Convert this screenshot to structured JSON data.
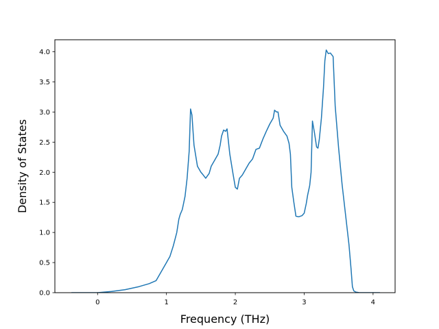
{
  "chart_data": {
    "type": "line",
    "title": "",
    "xlabel": "Frequency (THz)",
    "ylabel": "Density of States",
    "xlim": [
      -0.62,
      4.32
    ],
    "ylim": [
      0.0,
      4.2
    ],
    "xticks": [
      0,
      1,
      2,
      3,
      4
    ],
    "xtick_labels": [
      "0",
      "1",
      "2",
      "3",
      "4"
    ],
    "yticks": [
      0.0,
      0.5,
      1.0,
      1.5,
      2.0,
      2.5,
      3.0,
      3.5,
      4.0
    ],
    "ytick_labels": [
      "0.0",
      "0.5",
      "1.0",
      "1.5",
      "2.0",
      "2.5",
      "3.0",
      "3.5",
      "4.0"
    ],
    "grid": false,
    "colors": {
      "line": "#1f77b4",
      "axes": "#000000"
    },
    "series": [
      {
        "x": [
          -0.38,
          0.0,
          0.2,
          0.4,
          0.6,
          0.75,
          0.85,
          0.9,
          0.95,
          1.0,
          1.05,
          1.1,
          1.15,
          1.18,
          1.2,
          1.23,
          1.27,
          1.3,
          1.33,
          1.35,
          1.37,
          1.4,
          1.45,
          1.5,
          1.53,
          1.57,
          1.62,
          1.65,
          1.7,
          1.75,
          1.78,
          1.8,
          1.83,
          1.86,
          1.88,
          1.92,
          1.97,
          2.0,
          2.03,
          2.06,
          2.1,
          2.15,
          2.2,
          2.25,
          2.3,
          2.35,
          2.4,
          2.45,
          2.5,
          2.55,
          2.57,
          2.6,
          2.62,
          2.65,
          2.7,
          2.75,
          2.78,
          2.8,
          2.82,
          2.85,
          2.88,
          2.92,
          2.97,
          3.0,
          3.03,
          3.05,
          3.08,
          3.1,
          3.12,
          3.15,
          3.18,
          3.2,
          3.22,
          3.25,
          3.28,
          3.3,
          3.32,
          3.35,
          3.38,
          3.42,
          3.45,
          3.5,
          3.55,
          3.6,
          3.65,
          3.68,
          3.7,
          3.72,
          3.75,
          3.8,
          4.0,
          4.1
        ],
        "y": [
          0.0,
          0.0,
          0.02,
          0.05,
          0.1,
          0.15,
          0.2,
          0.3,
          0.4,
          0.5,
          0.6,
          0.78,
          1.0,
          1.22,
          1.3,
          1.38,
          1.6,
          1.9,
          2.35,
          3.05,
          2.95,
          2.45,
          2.1,
          2.0,
          1.96,
          1.9,
          1.98,
          2.1,
          2.2,
          2.3,
          2.45,
          2.6,
          2.7,
          2.68,
          2.72,
          2.3,
          1.95,
          1.75,
          1.72,
          1.9,
          1.95,
          2.05,
          2.15,
          2.22,
          2.38,
          2.4,
          2.55,
          2.68,
          2.8,
          2.9,
          3.03,
          3.0,
          3.0,
          2.78,
          2.68,
          2.6,
          2.48,
          2.3,
          1.75,
          1.5,
          1.27,
          1.26,
          1.28,
          1.32,
          1.48,
          1.62,
          1.78,
          2.0,
          2.85,
          2.65,
          2.42,
          2.4,
          2.55,
          2.9,
          3.4,
          3.85,
          4.03,
          3.97,
          3.98,
          3.92,
          3.1,
          2.4,
          1.8,
          1.3,
          0.8,
          0.4,
          0.1,
          0.03,
          0.01,
          0.0,
          0.0,
          0.0
        ]
      }
    ]
  }
}
